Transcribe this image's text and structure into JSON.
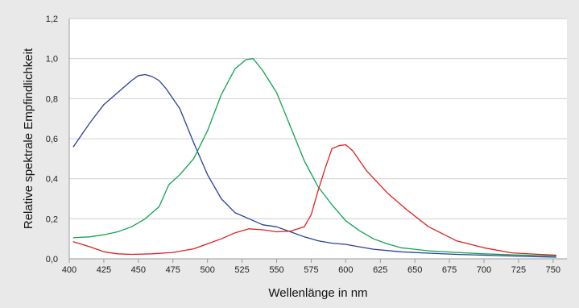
{
  "chart_data": {
    "type": "line",
    "title": "",
    "xlabel": "Wellenlänge in nm",
    "ylabel": "Relative spektrale Empfindlichkeit",
    "xlim": [
      400,
      760
    ],
    "ylim": [
      0,
      1.2
    ],
    "x_ticks": [
      "400",
      "425",
      "450",
      "475",
      "500",
      "525",
      "550",
      "575",
      "600",
      "625",
      "650",
      "675",
      "700",
      "725",
      "750"
    ],
    "y_ticks": [
      "0,0",
      "0,2",
      "0,4",
      "0,6",
      "0,8",
      "1,0",
      "1,2"
    ],
    "grid": "horizontal",
    "legend": "none",
    "series": [
      {
        "color": "#2a3f9a",
        "x": [
          403,
          415,
          425,
          435,
          445,
          450,
          455,
          460,
          465,
          470,
          480,
          490,
          500,
          510,
          520,
          530,
          540,
          550,
          560,
          570,
          580,
          590,
          600,
          610,
          620,
          640,
          660,
          680,
          700,
          720,
          740,
          752
        ],
        "y": [
          0.56,
          0.68,
          0.77,
          0.83,
          0.89,
          0.915,
          0.92,
          0.91,
          0.89,
          0.85,
          0.75,
          0.58,
          0.42,
          0.3,
          0.23,
          0.2,
          0.17,
          0.16,
          0.135,
          0.11,
          0.09,
          0.078,
          0.072,
          0.06,
          0.048,
          0.035,
          0.028,
          0.022,
          0.018,
          0.014,
          0.01,
          0.008
        ]
      },
      {
        "color": "#10a352",
        "x": [
          403,
          415,
          425,
          435,
          445,
          455,
          465,
          472,
          480,
          490,
          500,
          510,
          520,
          528,
          533,
          540,
          550,
          560,
          570,
          580,
          590,
          600,
          610,
          620,
          630,
          640,
          660,
          680,
          700,
          720,
          740,
          752
        ],
        "y": [
          0.105,
          0.11,
          0.12,
          0.135,
          0.16,
          0.2,
          0.26,
          0.37,
          0.42,
          0.5,
          0.64,
          0.82,
          0.95,
          0.995,
          1.0,
          0.94,
          0.83,
          0.66,
          0.49,
          0.36,
          0.27,
          0.19,
          0.14,
          0.1,
          0.075,
          0.055,
          0.04,
          0.032,
          0.025,
          0.02,
          0.016,
          0.014
        ]
      },
      {
        "color": "#e02020",
        "x": [
          403,
          415,
          425,
          435,
          445,
          460,
          475,
          490,
          500,
          510,
          520,
          530,
          540,
          550,
          560,
          570,
          575,
          580,
          585,
          590,
          595,
          600,
          605,
          615,
          630,
          645,
          660,
          680,
          700,
          720,
          740,
          752
        ],
        "y": [
          0.085,
          0.06,
          0.035,
          0.025,
          0.022,
          0.025,
          0.032,
          0.05,
          0.075,
          0.1,
          0.13,
          0.15,
          0.145,
          0.135,
          0.138,
          0.16,
          0.22,
          0.34,
          0.45,
          0.55,
          0.565,
          0.57,
          0.54,
          0.44,
          0.33,
          0.24,
          0.16,
          0.09,
          0.055,
          0.03,
          0.022,
          0.018
        ]
      }
    ]
  }
}
